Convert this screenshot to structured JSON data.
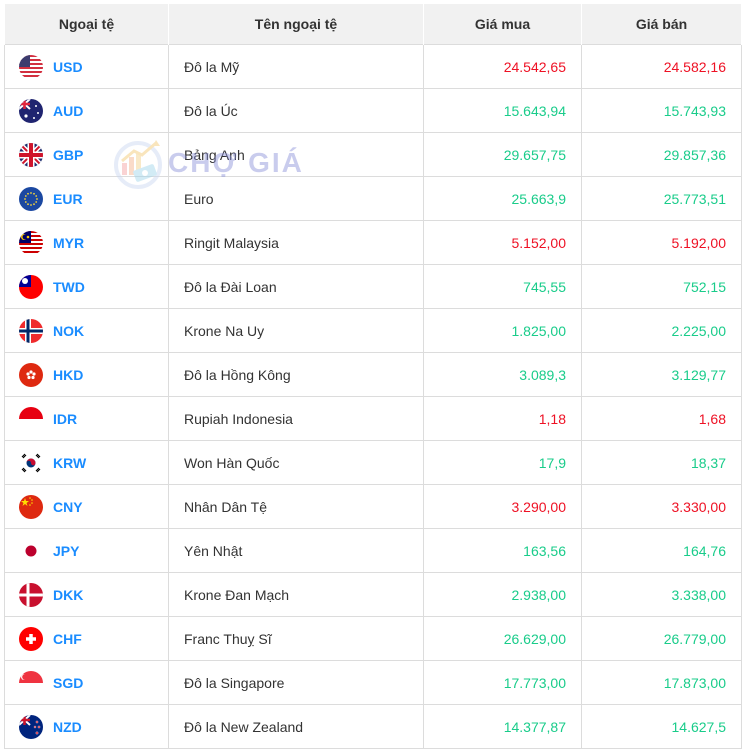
{
  "table": {
    "headers": [
      "Ngoại tệ",
      "Tên ngoại tệ",
      "Giá mua",
      "Giá bán"
    ],
    "rows": [
      {
        "code": "USD",
        "name": "Đô la Mỹ",
        "buy": "24.542,65",
        "sell": "24.582,16",
        "trend": "down",
        "flag": "us-flag-icon"
      },
      {
        "code": "AUD",
        "name": "Đô la Úc",
        "buy": "15.643,94",
        "sell": "15.743,93",
        "trend": "up",
        "flag": "au-flag-icon"
      },
      {
        "code": "GBP",
        "name": "Bảng Anh",
        "buy": "29.657,75",
        "sell": "29.857,36",
        "trend": "up",
        "flag": "gb-flag-icon"
      },
      {
        "code": "EUR",
        "name": "Euro",
        "buy": "25.663,9",
        "sell": "25.773,51",
        "trend": "up",
        "flag": "eu-flag-icon"
      },
      {
        "code": "MYR",
        "name": "Ringit Malaysia",
        "buy": "5.152,00",
        "sell": "5.192,00",
        "trend": "down",
        "flag": "my-flag-icon"
      },
      {
        "code": "TWD",
        "name": "Đô la Đài Loan",
        "buy": "745,55",
        "sell": "752,15",
        "trend": "up",
        "flag": "tw-flag-icon"
      },
      {
        "code": "NOK",
        "name": "Krone Na Uy",
        "buy": "1.825,00",
        "sell": "2.225,00",
        "trend": "up",
        "flag": "no-flag-icon"
      },
      {
        "code": "HKD",
        "name": "Đô la Hồng Kông",
        "buy": "3.089,3",
        "sell": "3.129,77",
        "trend": "up",
        "flag": "hk-flag-icon"
      },
      {
        "code": "IDR",
        "name": "Rupiah Indonesia",
        "buy": "1,18",
        "sell": "1,68",
        "trend": "down",
        "flag": "id-flag-icon"
      },
      {
        "code": "KRW",
        "name": "Won Hàn Quốc",
        "buy": "17,9",
        "sell": "18,37",
        "trend": "up",
        "flag": "kr-flag-icon"
      },
      {
        "code": "CNY",
        "name": "Nhân Dân Tệ",
        "buy": "3.290,00",
        "sell": "3.330,00",
        "trend": "down",
        "flag": "cn-flag-icon"
      },
      {
        "code": "JPY",
        "name": "Yên Nhật",
        "buy": "163,56",
        "sell": "164,76",
        "trend": "up",
        "flag": "jp-flag-icon"
      },
      {
        "code": "DKK",
        "name": "Krone Đan Mạch",
        "buy": "2.938,00",
        "sell": "3.338,00",
        "trend": "up",
        "flag": "dk-flag-icon"
      },
      {
        "code": "CHF",
        "name": "Franc Thuỵ Sĩ",
        "buy": "26.629,00",
        "sell": "26.779,00",
        "trend": "up",
        "flag": "ch-flag-icon"
      },
      {
        "code": "SGD",
        "name": "Đô la Singapore",
        "buy": "17.773,00",
        "sell": "17.873,00",
        "trend": "up",
        "flag": "sg-flag-icon"
      },
      {
        "code": "NZD",
        "name": "Đô la New Zealand",
        "buy": "14.377,87",
        "sell": "14.627,5",
        "trend": "up",
        "flag": "nz-flag-icon"
      }
    ]
  },
  "watermark": {
    "text": "CHỢ GIÁ"
  },
  "colors": {
    "up": "#19cc8a",
    "down": "#ee1124",
    "code": "#1a8cff",
    "header_bg": "#f1f1f1",
    "border": "#dcdcdc"
  }
}
